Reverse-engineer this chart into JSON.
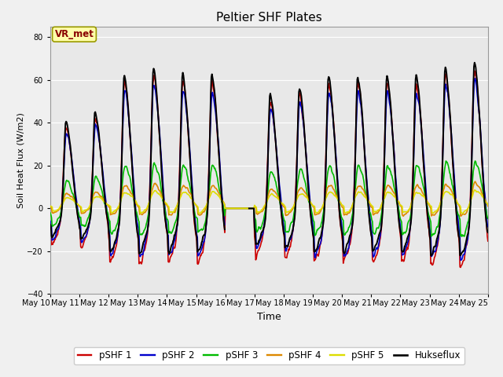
{
  "title": "Peltier SHF Plates",
  "xlabel": "Time",
  "ylabel": "Soil Heat Flux (W/m2)",
  "ylim": [
    -40,
    85
  ],
  "yticks": [
    -40,
    -20,
    0,
    20,
    40,
    60,
    80
  ],
  "xlim_days": [
    10,
    25
  ],
  "xtick_labels": [
    "May 10",
    "May 11",
    "May 12",
    "May 13",
    "May 14",
    "May 15",
    "May 16",
    "May 17",
    "May 18",
    "May 19",
    "May 20",
    "May 21",
    "May 22",
    "May 23",
    "May 24",
    "May 25"
  ],
  "legend_labels": [
    "pSHF 1",
    "pSHF 2",
    "pSHF 3",
    "pSHF 4",
    "pSHF 5",
    "Hukseflux"
  ],
  "line_colors": [
    "#cc0000",
    "#0000cc",
    "#00bb00",
    "#dd8800",
    "#dddd00",
    "#000000"
  ],
  "line_widths": [
    1.2,
    1.2,
    1.2,
    1.2,
    1.2,
    1.4
  ],
  "annotation_text": "VR_met",
  "annotation_color": "#880000",
  "annotation_bg": "#ffffaa",
  "annotation_border": "#999900",
  "plot_bg": "#e8e8e8",
  "grid_color": "#ffffff",
  "fig_bg": "#f0f0f0"
}
